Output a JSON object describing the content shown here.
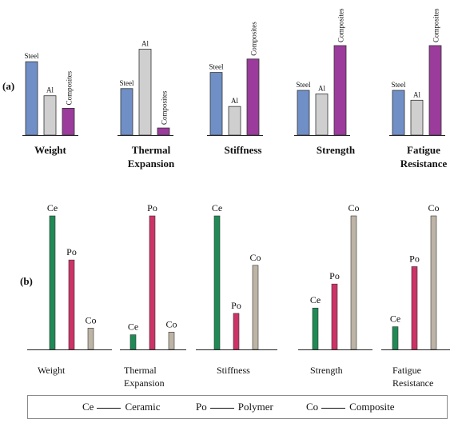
{
  "chart_data": [
    {
      "type": "bar",
      "panel_label": "(a)",
      "series_names": [
        "Steel",
        "Al",
        "Composites"
      ],
      "colors": [
        "#6f8fc6",
        "#cfcfcf",
        "#9b3b9b"
      ],
      "value_scale": "relative (no numeric axis shown)",
      "groups": [
        {
          "title": "Weight",
          "values": [
            82,
            44,
            30
          ]
        },
        {
          "title": "Thermal\nExpansion",
          "values": [
            52,
            96,
            8
          ]
        },
        {
          "title": "Stiffness",
          "values": [
            70,
            32,
            85
          ]
        },
        {
          "title": "Strength",
          "values": [
            50,
            46,
            100
          ]
        },
        {
          "title": "Fatigue\nResistance",
          "values": [
            50,
            39,
            100
          ]
        }
      ]
    },
    {
      "type": "bar",
      "panel_label": "(b)",
      "series_names": [
        "Ce",
        "Po",
        "Co"
      ],
      "colors": [
        "#1f8a55",
        "#cc3366",
        "#bdb4a6"
      ],
      "value_scale": "relative (no numeric axis shown)",
      "groups": [
        {
          "title": "Weight",
          "values": [
            100,
            67,
            16
          ]
        },
        {
          "title": "Thermal\nExpansion",
          "values": [
            11,
            100,
            13
          ]
        },
        {
          "title": "Stiffness",
          "values": [
            100,
            27,
            63
          ]
        },
        {
          "title": "Strength",
          "values": [
            31,
            49,
            100
          ]
        },
        {
          "title": "Fatigue\nResistance",
          "values": [
            17,
            62,
            100
          ]
        }
      ]
    }
  ],
  "legend": {
    "items": [
      {
        "abbr": "Ce",
        "name": "Ceramic"
      },
      {
        "abbr": "Po",
        "name": "Polymer"
      },
      {
        "abbr": "Co",
        "name": "Composite"
      }
    ]
  }
}
